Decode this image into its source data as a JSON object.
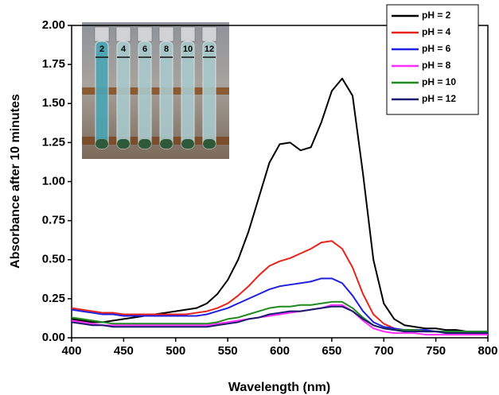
{
  "chart_data": {
    "type": "line",
    "xlabel": "Wavelength (nm)",
    "ylabel": "Absorbance after 10 minutes",
    "x": [
      400,
      410,
      420,
      430,
      440,
      450,
      460,
      470,
      480,
      490,
      500,
      510,
      520,
      530,
      540,
      550,
      560,
      570,
      580,
      590,
      600,
      610,
      620,
      630,
      640,
      650,
      660,
      670,
      680,
      690,
      700,
      710,
      720,
      730,
      740,
      750,
      760,
      770,
      780,
      790,
      800
    ],
    "series": [
      {
        "name": "pH = 2",
        "color": "#000000",
        "values": [
          0.12,
          0.11,
          0.1,
          0.1,
          0.11,
          0.12,
          0.13,
          0.14,
          0.15,
          0.16,
          0.17,
          0.18,
          0.19,
          0.22,
          0.28,
          0.37,
          0.5,
          0.68,
          0.9,
          1.12,
          1.24,
          1.25,
          1.2,
          1.22,
          1.38,
          1.58,
          1.66,
          1.55,
          1.05,
          0.5,
          0.22,
          0.12,
          0.08,
          0.07,
          0.06,
          0.06,
          0.05,
          0.05,
          0.04,
          0.04,
          0.04
        ]
      },
      {
        "name": "pH = 4",
        "color": "#e8231b",
        "values": [
          0.19,
          0.18,
          0.17,
          0.16,
          0.16,
          0.15,
          0.15,
          0.15,
          0.15,
          0.15,
          0.15,
          0.15,
          0.16,
          0.17,
          0.19,
          0.22,
          0.27,
          0.33,
          0.4,
          0.46,
          0.49,
          0.51,
          0.54,
          0.57,
          0.61,
          0.62,
          0.57,
          0.45,
          0.28,
          0.15,
          0.09,
          0.06,
          0.05,
          0.05,
          0.04,
          0.04,
          0.04,
          0.03,
          0.03,
          0.03,
          0.03
        ]
      },
      {
        "name": "pH = 6",
        "color": "#1f1fe0",
        "values": [
          0.18,
          0.17,
          0.16,
          0.15,
          0.15,
          0.14,
          0.14,
          0.14,
          0.14,
          0.14,
          0.14,
          0.14,
          0.14,
          0.15,
          0.17,
          0.19,
          0.22,
          0.25,
          0.28,
          0.31,
          0.33,
          0.34,
          0.35,
          0.36,
          0.38,
          0.38,
          0.35,
          0.27,
          0.17,
          0.1,
          0.07,
          0.06,
          0.05,
          0.05,
          0.05,
          0.04,
          0.04,
          0.04,
          0.04,
          0.04,
          0.04
        ]
      },
      {
        "name": "pH = 8",
        "color": "#ff2bff",
        "values": [
          0.11,
          0.1,
          0.09,
          0.08,
          0.08,
          0.08,
          0.08,
          0.08,
          0.08,
          0.08,
          0.08,
          0.08,
          0.08,
          0.08,
          0.09,
          0.1,
          0.11,
          0.12,
          0.13,
          0.14,
          0.15,
          0.16,
          0.17,
          0.18,
          0.19,
          0.21,
          0.21,
          0.17,
          0.11,
          0.06,
          0.04,
          0.03,
          0.03,
          0.03,
          0.02,
          0.02,
          0.02,
          0.02,
          0.02,
          0.02,
          0.02
        ]
      },
      {
        "name": "pH = 10",
        "color": "#1f8a1f",
        "values": [
          0.13,
          0.12,
          0.11,
          0.1,
          0.09,
          0.09,
          0.09,
          0.09,
          0.09,
          0.09,
          0.09,
          0.09,
          0.09,
          0.09,
          0.1,
          0.12,
          0.13,
          0.15,
          0.17,
          0.19,
          0.2,
          0.2,
          0.21,
          0.21,
          0.22,
          0.23,
          0.23,
          0.19,
          0.13,
          0.08,
          0.06,
          0.05,
          0.05,
          0.05,
          0.04,
          0.04,
          0.04,
          0.04,
          0.04,
          0.04,
          0.04
        ]
      },
      {
        "name": "pH = 12",
        "color": "#1a1a6e",
        "values": [
          0.1,
          0.09,
          0.08,
          0.08,
          0.07,
          0.07,
          0.07,
          0.07,
          0.07,
          0.07,
          0.07,
          0.07,
          0.07,
          0.07,
          0.08,
          0.09,
          0.1,
          0.12,
          0.13,
          0.15,
          0.16,
          0.17,
          0.17,
          0.18,
          0.19,
          0.2,
          0.2,
          0.17,
          0.12,
          0.08,
          0.06,
          0.05,
          0.04,
          0.04,
          0.04,
          0.04,
          0.03,
          0.03,
          0.03,
          0.03,
          0.03
        ]
      }
    ],
    "xlim": [
      400,
      800
    ],
    "xticks": [
      400,
      450,
      500,
      550,
      600,
      650,
      700,
      750,
      800
    ],
    "ylim": [
      0,
      2
    ],
    "yticks": [
      {
        "value": 0,
        "label": "0.00"
      },
      {
        "value": 0.25,
        "label": "0.25"
      },
      {
        "value": 0.5,
        "label": "0.50"
      },
      {
        "value": 0.75,
        "label": "0.75"
      },
      {
        "value": 1,
        "label": "1.00"
      },
      {
        "value": 1.25,
        "label": "1.25"
      },
      {
        "value": 1.5,
        "label": "1.50"
      },
      {
        "value": 1.75,
        "label": "1.75"
      },
      {
        "value": 2,
        "label": "2.00"
      }
    ],
    "legend": "upper right",
    "inset_labels": [
      "2",
      "4",
      "6",
      "8",
      "10",
      "12"
    ]
  }
}
